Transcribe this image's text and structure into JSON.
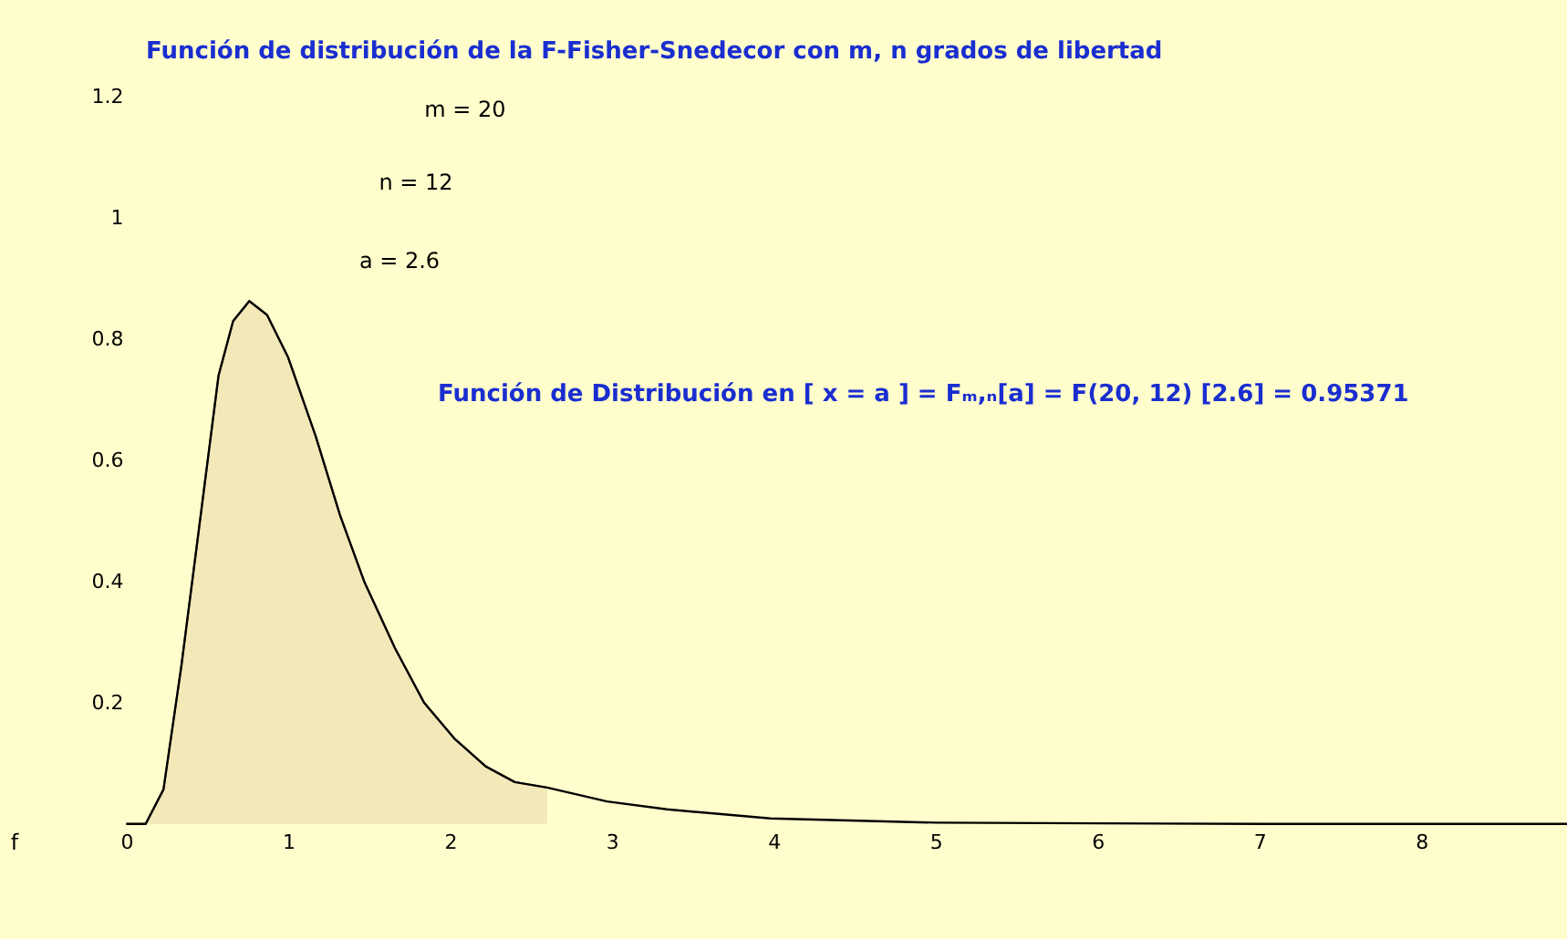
{
  "chart_data": {
    "type": "line",
    "title": "Función de distribución de la F-Fisher-Snedecor con m, n grados de libertad",
    "annotations": [
      "m = 20",
      "n = 12",
      "a = 2.6",
      "Función de Distribución en [ x  =  a ] =  Fₘ,ₙ[a] = F(20, 12) [2.6] = 0.95371",
      "f"
    ],
    "series": [
      {
        "type": "area",
        "color": "#f3e8b8",
        "x": [
          0,
          0.12,
          0.23,
          0.34,
          0.46,
          0.57,
          0.66,
          0.76,
          0.87,
          1.0,
          1.17,
          1.32,
          1.47,
          1.66,
          1.84,
          2.03,
          2.22,
          2.4,
          2.6
        ],
        "values": [
          0,
          0,
          0.057,
          0.26,
          0.51,
          0.74,
          0.83,
          0.863,
          0.84,
          0.77,
          0.64,
          0.51,
          0.4,
          0.29,
          0.2,
          0.14,
          0.095,
          0.069,
          0.06
        ]
      },
      {
        "color": "#000000",
        "x": [
          0,
          0.12,
          0.23,
          0.34,
          0.46,
          0.57,
          0.66,
          0.76,
          0.87,
          1.0,
          1.17,
          1.32,
          1.47,
          1.66,
          1.84,
          2.03,
          2.22,
          2.4,
          2.6,
          2.97,
          3.34,
          3.98,
          5,
          6,
          7,
          8.9
        ],
        "values": [
          0,
          0,
          0.057,
          0.26,
          0.51,
          0.74,
          0.83,
          0.863,
          0.84,
          0.77,
          0.64,
          0.51,
          0.4,
          0.29,
          0.2,
          0.14,
          0.095,
          0.069,
          0.06,
          0.037,
          0.024,
          0.009,
          0.002,
          0.001,
          0,
          0
        ]
      }
    ],
    "xlim": [
      -0.78,
      8.9
    ],
    "ylim": [
      -0.19,
      1.36
    ],
    "xticks": [
      0,
      1,
      2,
      3,
      4,
      5,
      6,
      7,
      8
    ],
    "yticks": [
      0.2,
      0.4,
      0.6,
      0.8,
      1,
      1.2
    ],
    "grid": false
  }
}
